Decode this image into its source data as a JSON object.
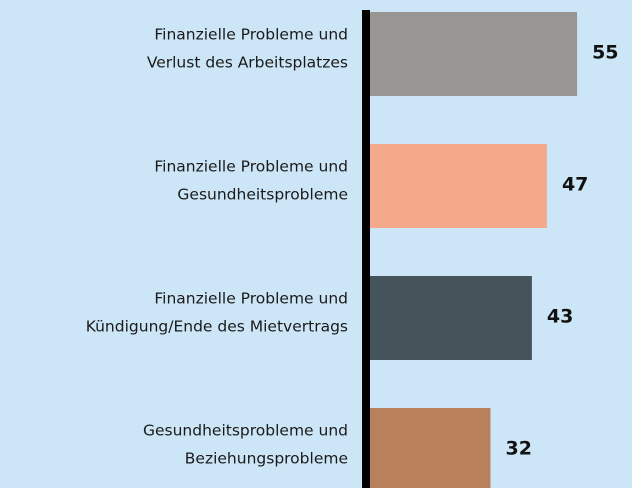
{
  "chart_data": {
    "type": "bar",
    "orientation": "horizontal",
    "categories": [
      [
        "Finanzielle Probleme und",
        "Verlust des Arbeitsplatzes"
      ],
      [
        "Finanzielle Probleme und",
        "Gesundheitsprobleme"
      ],
      [
        "Finanzielle Probleme und",
        "Kündigung/Ende des Mietvertrags"
      ],
      [
        "Gesundheitsprobleme und",
        "Beziehungsprobleme"
      ]
    ],
    "values": [
      55,
      47,
      43,
      32
    ],
    "colors": [
      "#979693",
      "#f4a98a",
      "#45545b",
      "#b9805c"
    ]
  }
}
